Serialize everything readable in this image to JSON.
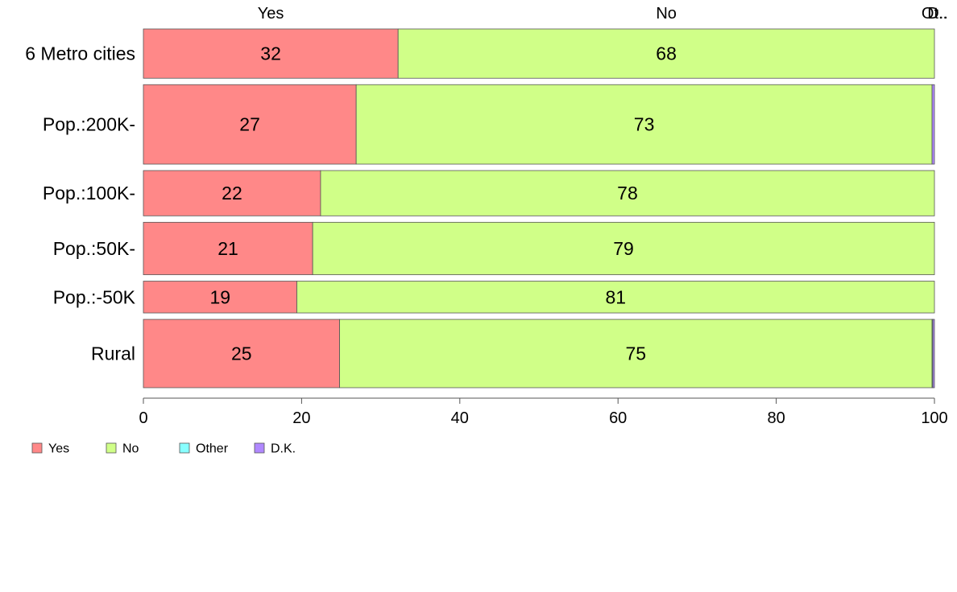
{
  "chart_data": {
    "type": "bar",
    "orientation": "horizontal",
    "stacked": true,
    "variable_width": true,
    "categories": [
      "6 Metro cities",
      "Pop.:200K-",
      "Pop.:100K-",
      "Pop.:50K-",
      "Pop.:-50K",
      "Rural"
    ],
    "series": [
      {
        "name": "Yes",
        "values": [
          32.2,
          26.9,
          22.4,
          21.4,
          19.4,
          24.8
        ],
        "labels": [
          "32",
          "27",
          "22",
          "21",
          "19",
          "25"
        ]
      },
      {
        "name": "No",
        "values": [
          67.8,
          72.8,
          77.6,
          78.6,
          80.6,
          74.9
        ],
        "labels": [
          "68",
          "73",
          "78",
          "79",
          "81",
          "75"
        ]
      },
      {
        "name": "Other",
        "values": [
          0,
          0,
          0,
          0,
          0,
          0.1
        ],
        "labels": [
          "",
          "",
          "",
          "",
          "",
          ""
        ]
      },
      {
        "name": "D.K.",
        "values": [
          0,
          0.3,
          0,
          0,
          0,
          0.2
        ],
        "labels": [
          "",
          "",
          "",
          "",
          "",
          ""
        ]
      }
    ],
    "relative_sample_sizes": [
      0.62,
      1.0,
      0.57,
      0.66,
      0.4,
      0.86
    ],
    "top_labels": [
      "Yes",
      "No",
      "Ot..",
      "D.."
    ],
    "xlim": [
      0,
      100
    ],
    "xticks": [
      "0",
      "20",
      "40",
      "60",
      "80",
      "100"
    ],
    "xlabel": "",
    "ylabel": "",
    "title": "",
    "grid": false,
    "legend_position": "bottom-left",
    "colors": {
      "Yes": "#ff8888",
      "No": "#d0ff88",
      "Other": "#88ffff",
      "D.K.": "#b088ff"
    },
    "border_color": "#555555"
  }
}
